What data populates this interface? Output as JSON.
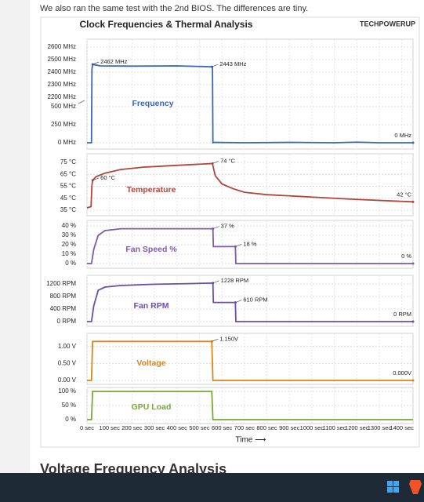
{
  "article": {
    "intro": "We also ran the same test with the 2nd BIOS. The differences are tiny.",
    "next_heading": "Voltage Frequency Analysis"
  },
  "figure": {
    "title": "Clock Frequencies & Thermal Analysis",
    "logo": "TECHPOWERUP",
    "xlabel": "Time ⟶",
    "xlim": [
      0,
      1450
    ],
    "xticks": [
      {
        "value": 0,
        "label": "0 sec"
      },
      {
        "value": 100,
        "label": "100 sec"
      },
      {
        "value": 200,
        "label": "200 sec"
      },
      {
        "value": 300,
        "label": "300 sec"
      },
      {
        "value": 400,
        "label": "400 sec"
      },
      {
        "value": 500,
        "label": "500 sec"
      },
      {
        "value": 600,
        "label": "600 sec"
      },
      {
        "value": 700,
        "label": "700 sec"
      },
      {
        "value": 800,
        "label": "800 sec"
      },
      {
        "value": 900,
        "label": "900 sec"
      },
      {
        "value": 1000,
        "label": "1000 sec"
      },
      {
        "value": 1100,
        "label": "1100 sec"
      },
      {
        "value": 1200,
        "label": "1200 sec"
      },
      {
        "value": 1300,
        "label": "1300 sec"
      },
      {
        "value": 1400,
        "label": "1400 sec"
      }
    ]
  },
  "chart_data": [
    {
      "type": "line",
      "label": "Frequency",
      "color": "#3b67b3",
      "ylim": [
        0,
        2600
      ],
      "axis_break": [
        500,
        2200
      ],
      "yticks": [
        {
          "value": 0,
          "label": "0 MHz"
        },
        {
          "value": 250,
          "label": "250 MHz"
        },
        {
          "value": 500,
          "label": "500 MHz"
        },
        {
          "value": 2200,
          "label": "2200 MHz"
        },
        {
          "value": 2300,
          "label": "2300 MHz"
        },
        {
          "value": 2400,
          "label": "2400 MHz"
        },
        {
          "value": 2500,
          "label": "2500 MHz"
        },
        {
          "value": 2600,
          "label": "2600 MHz"
        }
      ],
      "x": [
        0,
        20,
        22,
        25,
        60,
        200,
        400,
        555,
        558,
        560,
        565,
        700,
        900,
        1100,
        1200,
        1300,
        1450
      ],
      "values": [
        0,
        0,
        2420,
        2462,
        2450,
        2448,
        2450,
        2443,
        2443,
        0,
        5,
        0,
        5,
        0,
        8,
        0,
        0
      ],
      "annotations": [
        {
          "x": 25,
          "y": 2462,
          "label": "2462 MHz"
        },
        {
          "x": 555,
          "y": 2443,
          "label": "2443 MHz"
        },
        {
          "x": 1450,
          "y": 0,
          "label": "0 MHz"
        }
      ]
    },
    {
      "type": "line",
      "label": "Temperature",
      "color": "#b0463c",
      "ylim": [
        35,
        75
      ],
      "yticks": [
        {
          "value": 35,
          "label": "35 °C"
        },
        {
          "value": 45,
          "label": "45 °C"
        },
        {
          "value": 55,
          "label": "55 °C"
        },
        {
          "value": 65,
          "label": "65 °C"
        },
        {
          "value": 75,
          "label": "75 °C"
        }
      ],
      "x": [
        0,
        18,
        22,
        25,
        40,
        80,
        150,
        250,
        350,
        450,
        555,
        558,
        570,
        600,
        650,
        700,
        800,
        1000,
        1200,
        1450
      ],
      "values": [
        37,
        38,
        56,
        60,
        63,
        66,
        69,
        71,
        72,
        73,
        74,
        74,
        64,
        57,
        53,
        50,
        48,
        46,
        44,
        42
      ],
      "annotations": [
        {
          "x": 25,
          "y": 60,
          "label": "60 °C"
        },
        {
          "x": 558,
          "y": 74,
          "label": "74 °C"
        },
        {
          "x": 1450,
          "y": 42,
          "label": "42 °C"
        }
      ]
    },
    {
      "type": "line",
      "label": "Fan Speed %",
      "color": "#7b5cae",
      "ylim": [
        0,
        40
      ],
      "yticks": [
        {
          "value": 0,
          "label": "0 %"
        },
        {
          "value": 10,
          "label": "10 %"
        },
        {
          "value": 20,
          "label": "20 %"
        },
        {
          "value": 30,
          "label": "30 %"
        },
        {
          "value": 40,
          "label": "40 %"
        }
      ],
      "x": [
        0,
        20,
        30,
        50,
        80,
        150,
        300,
        450,
        560,
        562,
        660,
        662,
        1450
      ],
      "values": [
        0,
        0,
        15,
        30,
        35,
        37,
        37,
        37,
        37,
        18,
        18,
        0,
        0
      ],
      "annotations": [
        {
          "x": 560,
          "y": 37,
          "label": "37 %"
        },
        {
          "x": 660,
          "y": 18,
          "label": "18 %"
        },
        {
          "x": 1450,
          "y": 0,
          "label": "0 %"
        }
      ]
    },
    {
      "type": "line",
      "label": "Fan RPM",
      "color": "#6a4fa8",
      "ylim": [
        0,
        1200
      ],
      "yticks": [
        {
          "value": 0,
          "label": "0 RPM"
        },
        {
          "value": 400,
          "label": "400 RPM"
        },
        {
          "value": 800,
          "label": "800 RPM"
        },
        {
          "value": 1200,
          "label": "1200 RPM"
        }
      ],
      "x": [
        0,
        20,
        30,
        50,
        80,
        150,
        300,
        450,
        560,
        562,
        660,
        662,
        1450
      ],
      "values": [
        0,
        0,
        500,
        1000,
        1100,
        1150,
        1190,
        1210,
        1228,
        610,
        610,
        0,
        0
      ],
      "annotations": [
        {
          "x": 560,
          "y": 1228,
          "label": "1228 RPM"
        },
        {
          "x": 660,
          "y": 610,
          "label": "610 RPM"
        },
        {
          "x": 1450,
          "y": 0,
          "label": "0 RPM"
        }
      ]
    },
    {
      "type": "line",
      "label": "Voltage",
      "color": "#d9861a",
      "ylim": [
        0,
        1.25
      ],
      "yticks": [
        {
          "value": 0,
          "label": "0.00 V"
        },
        {
          "value": 0.5,
          "label": "0.50 V"
        },
        {
          "value": 1,
          "label": "1.00 V"
        }
      ],
      "x": [
        0,
        20,
        25,
        555,
        560,
        1450
      ],
      "values": [
        0,
        0,
        1.15,
        1.15,
        0,
        0
      ],
      "annotations": [
        {
          "x": 555,
          "y": 1.15,
          "label": "1.150V"
        },
        {
          "x": 1450,
          "y": 0,
          "label": "0.000V"
        }
      ]
    },
    {
      "type": "line",
      "label": "GPU Load",
      "color": "#76a83a",
      "ylim": [
        0,
        100
      ],
      "yticks": [
        {
          "value": 0,
          "label": "0 %"
        },
        {
          "value": 50,
          "label": "50 %"
        },
        {
          "value": 100,
          "label": "100 %"
        }
      ],
      "x": [
        0,
        20,
        25,
        555,
        560,
        1450
      ],
      "values": [
        0,
        0,
        100,
        100,
        0,
        0
      ],
      "annotations": []
    }
  ]
}
